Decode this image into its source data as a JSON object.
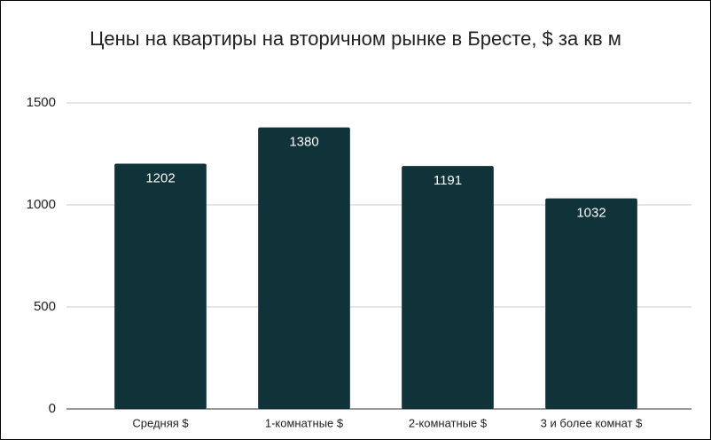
{
  "chart_data": {
    "type": "bar",
    "title": "Цены на квартиры на вторичном рынке в Бресте, $ за кв м",
    "categories": [
      "Средняя $",
      "1-комнатные $",
      "2-комнатные $",
      "3 и более комнат $"
    ],
    "values": [
      1202,
      1380,
      1191,
      1032
    ],
    "color": "#0f3338",
    "ylim": [
      0,
      1500
    ],
    "yticks": [
      0,
      500,
      1000,
      1500
    ],
    "grid": true
  }
}
